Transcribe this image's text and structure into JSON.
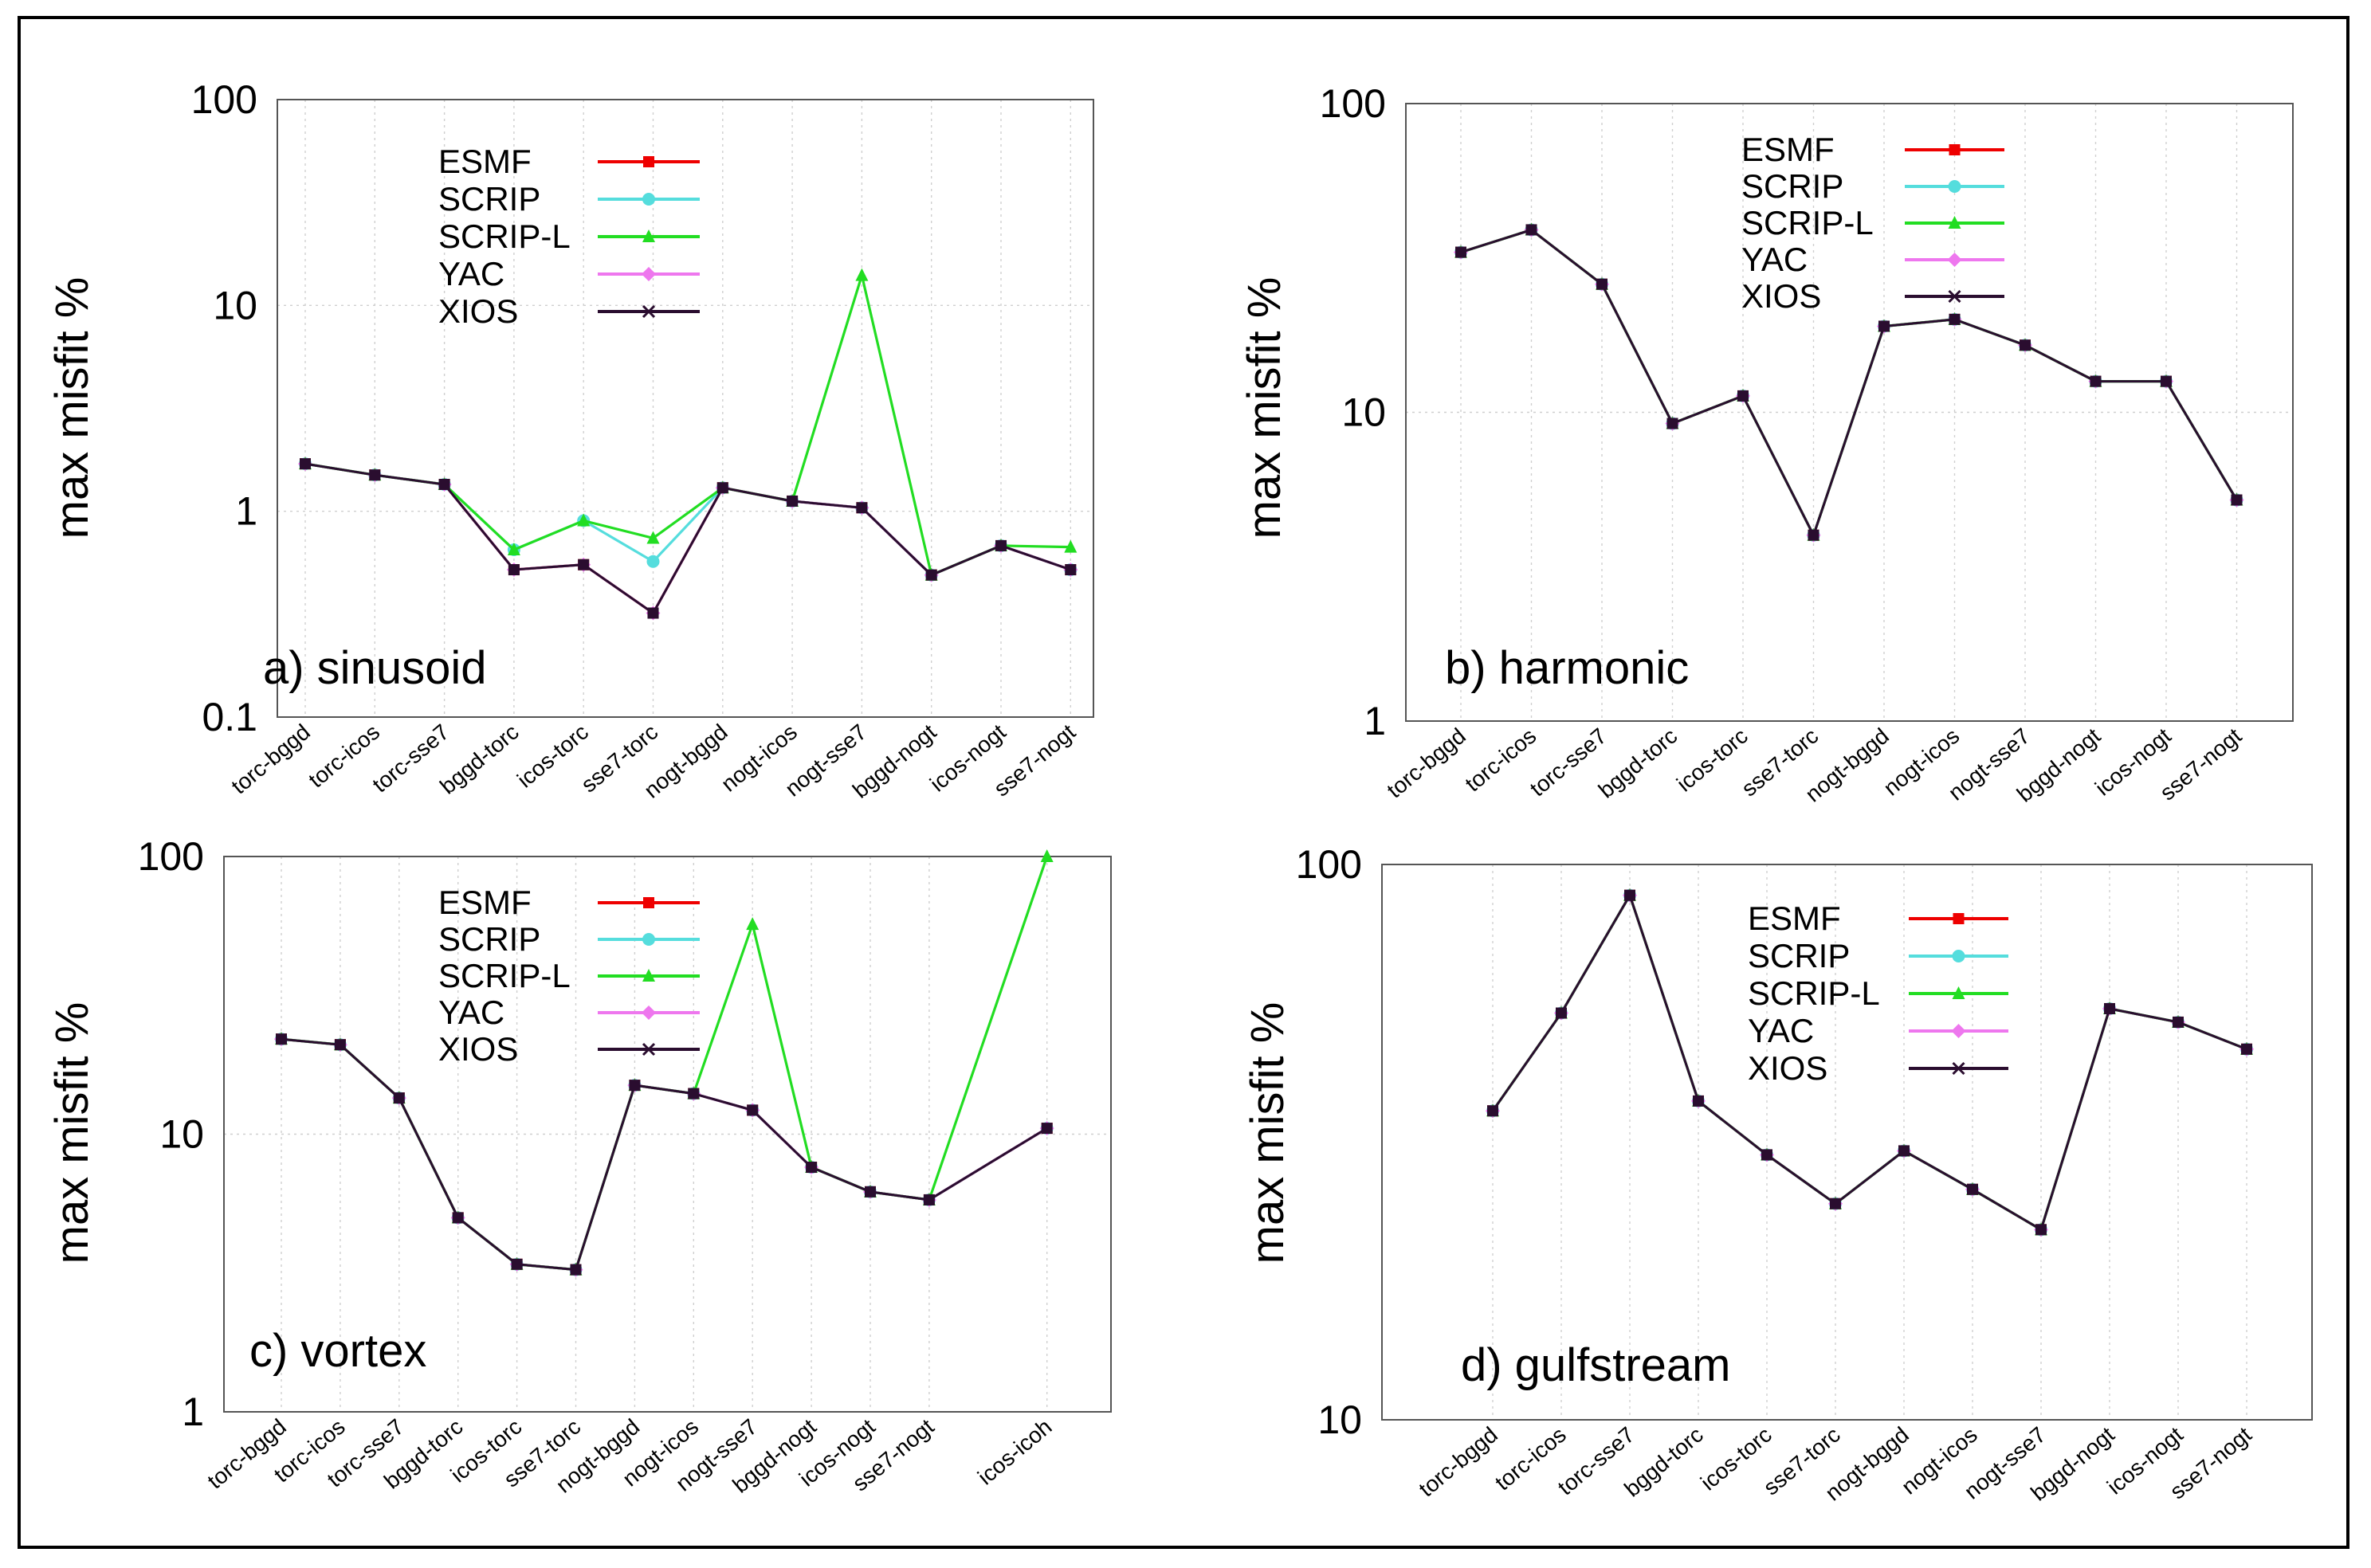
{
  "colors": {
    "ESMF": "#ee0000",
    "SCRIP": "#55dddd",
    "SCRIP-L": "#22dd22",
    "YAC": "#ee77ee",
    "XIOS": "#2a0d2f"
  },
  "chart_data": [
    {
      "type": "line",
      "title": "a) sinusoid",
      "ylabel": "max misfit %",
      "yscale": "log",
      "ylim": [
        0.1,
        100
      ],
      "yticks": [
        "100",
        "10",
        "1",
        "0.1"
      ],
      "grid": true,
      "legend": "top-center",
      "categories": [
        "torc-bggd",
        "torc-icos",
        "torc-sse7",
        "bggd-torc",
        "icos-torc",
        "sse7-torc",
        "nogt-bggd",
        "nogt-icos",
        "nogt-sse7",
        "bggd-nogt",
        "icos-nogt",
        "sse7-nogt"
      ],
      "series": [
        {
          "name": "ESMF",
          "marker": "square",
          "values": [
            1.7,
            1.5,
            1.35,
            0.52,
            0.55,
            0.32,
            1.3,
            1.12,
            1.04,
            0.49,
            0.68,
            0.52
          ]
        },
        {
          "name": "SCRIP",
          "marker": "circle",
          "values": [
            1.7,
            1.5,
            1.35,
            0.65,
            0.9,
            0.57,
            1.3,
            1.12,
            1.04,
            0.49,
            0.68,
            0.52
          ]
        },
        {
          "name": "SCRIP-L",
          "marker": "triangle",
          "values": [
            1.7,
            1.5,
            1.35,
            0.65,
            0.9,
            0.74,
            1.3,
            1.12,
            14.0,
            0.49,
            0.68,
            0.67
          ]
        },
        {
          "name": "YAC",
          "marker": "diamond",
          "values": [
            1.7,
            1.5,
            1.35,
            0.52,
            0.55,
            0.32,
            1.3,
            1.12,
            1.04,
            0.49,
            0.68,
            0.52
          ]
        },
        {
          "name": "XIOS",
          "marker": "x",
          "values": [
            1.7,
            1.5,
            1.35,
            0.52,
            0.55,
            0.32,
            1.3,
            1.12,
            1.04,
            0.49,
            0.68,
            0.52
          ]
        }
      ]
    },
    {
      "type": "line",
      "title": "b) harmonic",
      "ylabel": "max misfit %",
      "yscale": "log",
      "ylim": [
        1,
        100
      ],
      "yticks": [
        "100",
        "10",
        "1"
      ],
      "grid": true,
      "legend": "top-right",
      "categories": [
        "torc-bggd",
        "torc-icos",
        "torc-sse7",
        "bggd-torc",
        "icos-torc",
        "sse7-torc",
        "nogt-bggd",
        "nogt-icos",
        "nogt-sse7",
        "bggd-nogt",
        "icos-nogt",
        "sse7-nogt"
      ],
      "series": [
        {
          "name": "ESMF",
          "marker": "square",
          "values": [
            33,
            39,
            26,
            9.2,
            11.3,
            4.0,
            19,
            20,
            16.5,
            12.6,
            12.6,
            5.2
          ]
        },
        {
          "name": "SCRIP",
          "marker": "circle",
          "values": [
            33,
            39,
            26,
            9.2,
            11.3,
            4.0,
            19,
            20,
            16.5,
            12.6,
            12.6,
            5.2
          ]
        },
        {
          "name": "SCRIP-L",
          "marker": "triangle",
          "values": [
            33,
            39,
            26,
            9.2,
            11.3,
            4.0,
            19,
            20,
            16.5,
            12.6,
            12.6,
            5.2
          ]
        },
        {
          "name": "YAC",
          "marker": "diamond",
          "values": [
            33,
            39,
            26,
            9.2,
            11.3,
            4.0,
            19,
            20,
            16.5,
            12.6,
            12.6,
            5.2
          ]
        },
        {
          "name": "XIOS",
          "marker": "x",
          "values": [
            33,
            39,
            26,
            9.2,
            11.3,
            4.0,
            19,
            20,
            16.5,
            12.6,
            12.6,
            5.2
          ]
        }
      ]
    },
    {
      "type": "line",
      "title": "c) vortex",
      "ylabel": "max misfit %",
      "yscale": "log",
      "ylim": [
        1,
        100
      ],
      "yticks": [
        "100",
        "10",
        "1"
      ],
      "grid": true,
      "legend": "top-center",
      "categories": [
        "torc-bggd",
        "torc-icos",
        "torc-sse7",
        "bggd-torc",
        "icos-torc",
        "sse7-torc",
        "nogt-bggd",
        "nogt-icos",
        "nogt-sse7",
        "bggd-nogt",
        "icos-nogt",
        "sse7-nogt",
        "",
        "icos-icoh"
      ],
      "series": [
        {
          "name": "ESMF",
          "marker": "square",
          "values": [
            22,
            21,
            13.5,
            5.0,
            3.4,
            3.25,
            15,
            14,
            12.2,
            7.6,
            6.2,
            5.8,
            null,
            10.5
          ]
        },
        {
          "name": "SCRIP",
          "marker": "circle",
          "values": [
            22,
            21,
            13.5,
            5.0,
            3.4,
            3.25,
            15,
            14,
            12.2,
            7.6,
            6.2,
            5.8,
            null,
            10.5
          ]
        },
        {
          "name": "SCRIP-L",
          "marker": "triangle",
          "values": [
            22,
            21,
            13.5,
            5.0,
            3.4,
            3.25,
            15,
            14,
            57,
            7.6,
            6.2,
            5.8,
            null,
            105
          ]
        },
        {
          "name": "YAC",
          "marker": "diamond",
          "values": [
            22,
            21,
            13.5,
            5.0,
            3.4,
            3.25,
            15,
            14,
            12.2,
            7.6,
            6.2,
            5.8,
            null,
            10.5
          ]
        },
        {
          "name": "XIOS",
          "marker": "x",
          "values": [
            22,
            21,
            13.5,
            5.0,
            3.4,
            3.25,
            15,
            14,
            12.2,
            7.6,
            6.2,
            5.8,
            null,
            10.5
          ]
        }
      ]
    },
    {
      "type": "line",
      "title": "d) gulfstream",
      "ylabel": "max misfit %",
      "yscale": "log",
      "ylim": [
        10,
        100
      ],
      "yticks": [
        "100",
        "10"
      ],
      "grid": true,
      "legend": "top-right",
      "categories": [
        "torc-bggd",
        "torc-icos",
        "torc-sse7",
        "bggd-torc",
        "icos-torc",
        "sse7-torc",
        "nogt-bggd",
        "nogt-icos",
        "nogt-sse7",
        "bggd-nogt",
        "icos-nogt",
        "sse7-nogt"
      ],
      "series": [
        {
          "name": "ESMF",
          "marker": "square",
          "values": [
            36,
            54,
            88,
            37.5,
            30,
            24.5,
            30.5,
            26,
            22,
            55,
            52,
            46.5
          ]
        },
        {
          "name": "SCRIP",
          "marker": "circle",
          "values": [
            36,
            54,
            88,
            37.5,
            30,
            24.5,
            30.5,
            26,
            22,
            55,
            52,
            46.5
          ]
        },
        {
          "name": "SCRIP-L",
          "marker": "triangle",
          "values": [
            36,
            54,
            88,
            37.5,
            30,
            24.5,
            30.5,
            26,
            22,
            55,
            52,
            46.5
          ]
        },
        {
          "name": "YAC",
          "marker": "diamond",
          "values": [
            36,
            54,
            88,
            37.5,
            30,
            24.5,
            30.5,
            26,
            22,
            55,
            52,
            46.5
          ]
        },
        {
          "name": "XIOS",
          "marker": "x",
          "values": [
            36,
            54,
            88,
            37.5,
            30,
            24.5,
            30.5,
            26,
            22,
            55,
            52,
            46.5
          ]
        }
      ]
    }
  ]
}
